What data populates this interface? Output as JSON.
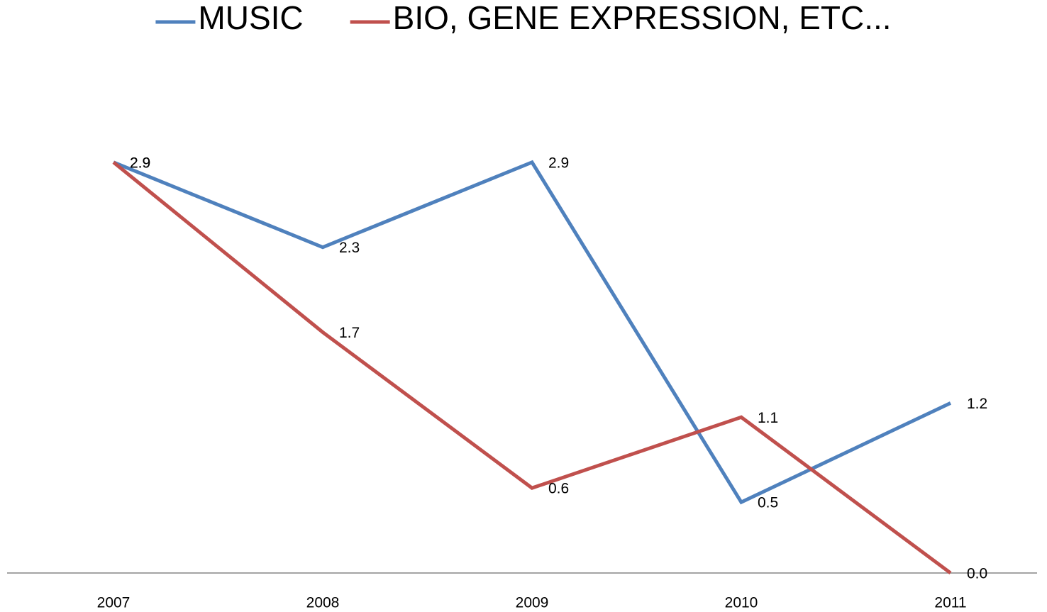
{
  "chart_data": {
    "type": "line",
    "categories": [
      "2007",
      "2008",
      "2009",
      "2010",
      "2011"
    ],
    "series": [
      {
        "name": "MUSIC",
        "color": "#4f81bd",
        "values": [
          2.9,
          2.3,
          2.9,
          0.5,
          1.2
        ],
        "value_labels": [
          "2.9",
          "2.3",
          "2.9",
          "0.5",
          "1.2"
        ]
      },
      {
        "name": "BIO, GENE EXPRESSION, ETC...",
        "color": "#c0504d",
        "values": [
          2.9,
          1.7,
          0.6,
          1.1,
          0.0
        ],
        "value_labels": [
          "2.9",
          "1.7",
          "0.6",
          "1.1",
          "0.0"
        ]
      }
    ],
    "ylim": [
      0,
      3.5
    ],
    "legend": "top"
  }
}
